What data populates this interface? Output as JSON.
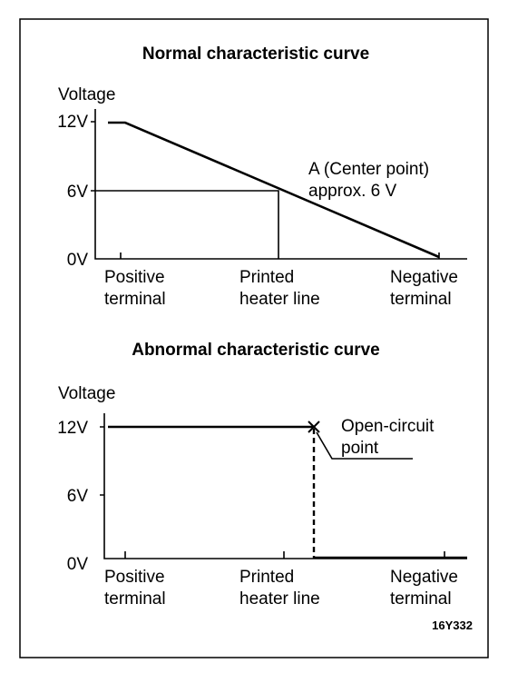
{
  "panels": [
    {
      "title": "Normal characteristic curve",
      "y_label": "Voltage",
      "y_ticks": [
        "12V",
        "6V",
        "0V"
      ],
      "x_labels": [
        [
          "Positive",
          "terminal"
        ],
        [
          "Printed",
          "heater line"
        ],
        [
          "Negative",
          "terminal"
        ]
      ],
      "annotation": [
        "A (Center point)",
        "approx. 6 V"
      ]
    },
    {
      "title": "Abnormal characteristic curve",
      "y_label": "Voltage",
      "y_ticks": [
        "12V",
        "6V",
        "0V"
      ],
      "x_labels": [
        [
          "Positive",
          "terminal"
        ],
        [
          "Printed",
          "heater line"
        ],
        [
          "Negative",
          "terminal"
        ]
      ],
      "annotation": [
        "Open-circuit",
        "point"
      ]
    }
  ],
  "figure_id": "16Y332"
}
